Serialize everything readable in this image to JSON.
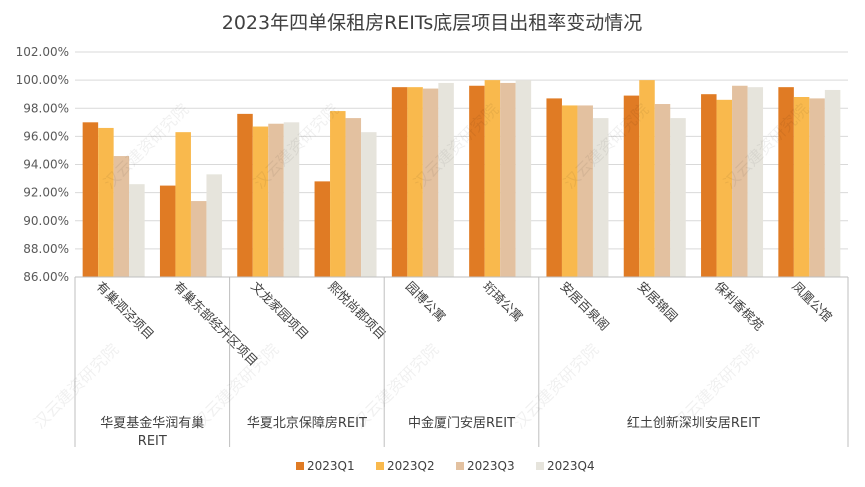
{
  "chart_data": {
    "type": "bar",
    "title": "2023年四单保租房REITs底层项目出租率变动情况",
    "xlabel": "",
    "ylabel": "",
    "ylim": [
      86,
      102
    ],
    "yticks": [
      "86.00%",
      "88.00%",
      "90.00%",
      "92.00%",
      "94.00%",
      "96.00%",
      "98.00%",
      "100.00%",
      "102.00%"
    ],
    "categories": [
      "有巢泗泾项目",
      "有巢东部经开区项目",
      "文龙家园项目",
      "熙悦尚郡项目",
      "园博公寓",
      "珩琦公寓",
      "安居百泉阁",
      "安居锦园",
      "保利香槟苑",
      "凤凰公馆"
    ],
    "groups": [
      {
        "name": "华夏基金华润有巢REIT",
        "line1": "华夏基金华润有巢",
        "line2": "REIT",
        "count": 2
      },
      {
        "name": "华夏北京保障房REIT",
        "count": 2
      },
      {
        "name": "中金厦门安居REIT",
        "count": 2
      },
      {
        "name": "红土创新深圳安居REIT",
        "count": 4
      }
    ],
    "series": [
      {
        "name": "2023Q1",
        "color": "#e07b24",
        "values": [
          97.0,
          92.5,
          97.6,
          92.8,
          99.5,
          99.6,
          98.7,
          98.9,
          99.0,
          99.5
        ]
      },
      {
        "name": "2023Q2",
        "color": "#f9b94d",
        "values": [
          96.6,
          96.3,
          96.7,
          97.8,
          99.5,
          100.0,
          98.2,
          100.0,
          98.6,
          98.8
        ]
      },
      {
        "name": "2023Q3",
        "color": "#e3c1a0",
        "values": [
          94.6,
          91.4,
          96.9,
          97.3,
          99.4,
          99.8,
          98.2,
          98.3,
          99.6,
          98.7
        ]
      },
      {
        "name": "2023Q4",
        "color": "#e6e4dc",
        "values": [
          92.6,
          93.3,
          97.0,
          96.3,
          99.8,
          100.0,
          97.3,
          97.3,
          99.5,
          99.3
        ]
      }
    ],
    "legend_position": "bottom",
    "watermark": "汉云建资研究院"
  }
}
